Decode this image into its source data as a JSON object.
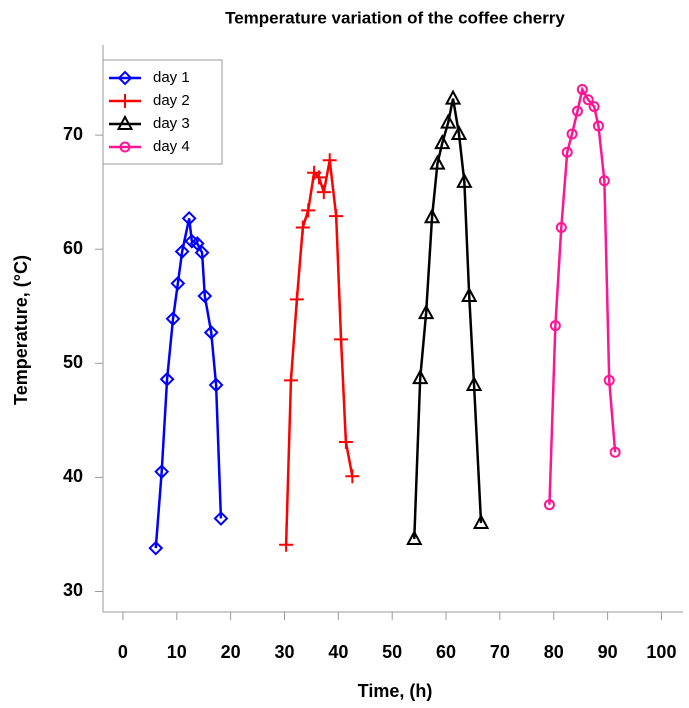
{
  "chart_data": {
    "type": "line",
    "title": "Temperature variation of the coffee cherry",
    "x_label": "Time, (h)",
    "y_label": "Temperature, (°C)",
    "xlim": [
      -3.7,
      104
    ],
    "ylim": [
      28.2,
      77.9
    ],
    "xticks": [
      0,
      10,
      20,
      30,
      40,
      50,
      60,
      70,
      80,
      90,
      100
    ],
    "yticks": [
      30,
      40,
      50,
      60,
      70
    ],
    "legend": "upper left",
    "series": [
      {
        "name": "day 1",
        "color": "#0000ff",
        "marker": "diamond",
        "x": [
          6.1,
          7.2,
          8.2,
          9.3,
          10.2,
          11.0,
          12.3,
          12.8,
          13.8,
          14.7,
          15.2,
          16.4,
          17.3,
          18.2
        ],
        "values": [
          33.8,
          40.5,
          48.6,
          53.9,
          57.0,
          59.8,
          62.7,
          60.7,
          60.5,
          59.7,
          55.9,
          52.7,
          48.1,
          36.4
        ]
      },
      {
        "name": "day 2",
        "color": "#ff0000",
        "marker": "plus",
        "x": [
          30.3,
          31.2,
          32.3,
          33.4,
          34.4,
          35.5,
          36.4,
          37.3,
          38.4,
          39.6,
          40.5,
          41.4,
          42.6
        ],
        "values": [
          34.1,
          48.5,
          55.6,
          61.9,
          63.4,
          66.7,
          66.3,
          65.0,
          67.8,
          62.9,
          52.1,
          43.1,
          40.1
        ]
      },
      {
        "name": "day 3",
        "color": "#000000",
        "marker": "triangle",
        "x": [
          54.1,
          55.2,
          56.3,
          57.4,
          58.4,
          59.3,
          60.4,
          61.3,
          62.4,
          63.4,
          64.3,
          65.2,
          66.5
        ],
        "values": [
          34.6,
          48.7,
          54.4,
          62.8,
          67.5,
          69.3,
          71.1,
          73.2,
          70.1,
          65.9,
          55.9,
          48.1,
          36.0
        ]
      },
      {
        "name": "day 4",
        "color": "#ff1493",
        "marker": "circle",
        "x": [
          79.2,
          80.3,
          81.4,
          82.5,
          83.4,
          84.4,
          85.3,
          86.4,
          87.5,
          88.3,
          89.4,
          90.3,
          91.4
        ],
        "values": [
          37.6,
          53.3,
          61.9,
          68.5,
          70.1,
          72.1,
          74.0,
          73.1,
          72.5,
          70.8,
          66.0,
          48.5,
          42.2
        ]
      }
    ]
  }
}
